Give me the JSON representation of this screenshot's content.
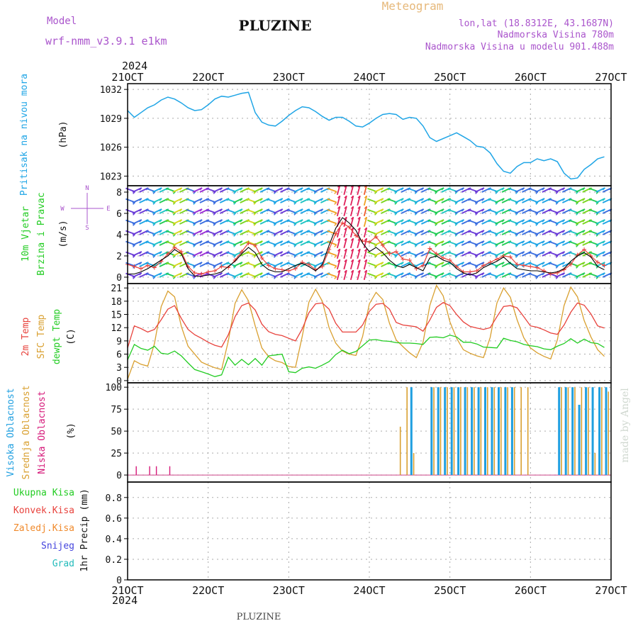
{
  "header": {
    "model_label": "Model",
    "model_name": "wrf-nmm_v3.9.1 e1km",
    "station": "PLUZINE",
    "product": "Meteogram",
    "lonlat": "lon,lat (18.8312E, 43.1687N)",
    "elevation": "Nadmorska Visina 780m",
    "model_elevation": "Nadmorska Visina u modelu 901.488m",
    "year_top": "2024",
    "year_bottom": "2024",
    "footer_station": "PLUZINE",
    "watermark": "made by Angel"
  },
  "colors": {
    "pressure": "#1fa5e6",
    "temp2m": "#e8423c",
    "sfc_temp": "#d9a030",
    "dewpoint": "#22cc22",
    "high_cloud": "#1f9fe0",
    "mid_cloud": "#d9a030",
    "low_cloud": "#d6197a",
    "precip_total": "#22cc22",
    "precip_conv": "#e8423c",
    "precip_frozen": "#f08a2c",
    "snow": "#4444dd",
    "graupel": "#22bbbb",
    "gust": "#e8423c",
    "wind_speed": "#000000",
    "label_purple": "#aa55cc"
  },
  "chart_data": [
    {
      "type": "line",
      "panel": "pressure",
      "ylabel": [
        "Pritisak na nivou mora",
        "(hPa)"
      ],
      "x_ticks": [
        "21OCT",
        "22OCT",
        "23OCT",
        "24OCT",
        "25OCT",
        "26OCT",
        "27OCT"
      ],
      "y_ticks": [
        1023,
        1026,
        1029,
        1032
      ],
      "ylim": [
        1022,
        1032.6
      ],
      "grid": true,
      "series": [
        {
          "values": [
            1029.8,
            1029.1,
            1029.6,
            1030.1,
            1030.4,
            1030.9,
            1031.2,
            1031.0,
            1030.6,
            1030.1,
            1029.8,
            1029.9,
            1030.4,
            1031.0,
            1031.3,
            1031.2,
            1031.4,
            1031.6,
            1031.7,
            1029.6,
            1028.6,
            1028.3,
            1028.2,
            1028.7,
            1029.3,
            1029.8,
            1030.2,
            1030.1,
            1029.7,
            1029.2,
            1028.8,
            1029.1,
            1029.1,
            1028.7,
            1028.2,
            1028.1,
            1028.5,
            1029.0,
            1029.4,
            1029.5,
            1029.4,
            1028.9,
            1029.1,
            1029.0,
            1028.2,
            1027.0,
            1026.6,
            1026.9,
            1027.2,
            1027.5,
            1027.1,
            1026.7,
            1026.1,
            1026.0,
            1025.4,
            1024.3,
            1023.5,
            1023.3,
            1024.0,
            1024.4,
            1024.4,
            1024.8,
            1024.6,
            1024.8,
            1024.5,
            1023.3,
            1022.7,
            1022.8,
            1023.7,
            1024.2,
            1024.8,
            1025.0
          ]
        }
      ]
    },
    {
      "type": "line",
      "panel": "wind",
      "ylabel": [
        "10m Vjetar",
        "Brzina i Pravac",
        "(m/s)"
      ],
      "compass": {
        "n": "N",
        "w": "W",
        "e": "E",
        "s": "S"
      },
      "y_ticks": [
        0,
        2,
        4,
        6,
        8
      ],
      "ylim": [
        -0.6,
        8.6
      ],
      "grid": true,
      "series": [
        {
          "name": "gust",
          "values": [
            1.2,
            1.0,
            0.8,
            1.1,
            0.9,
            1.5,
            2.2,
            2.8,
            2.4,
            1.0,
            0.4,
            0.3,
            0.5,
            0.6,
            1.0,
            0.9,
            1.6,
            2.4,
            3.2,
            3.0,
            1.8,
            1.1,
            0.8,
            0.7,
            0.6,
            0.8,
            1.4,
            1.2,
            0.7,
            1.0,
            2.6,
            4.1,
            5.1,
            4.7,
            3.9,
            3.4,
            3.3,
            3.8,
            3.0,
            2.2,
            2.4,
            1.7,
            1.6,
            0.8,
            1.1,
            2.7,
            2.2,
            1.8,
            1.6,
            1.0,
            0.5,
            0.5,
            0.6,
            1.1,
            1.4,
            1.7,
            2.0,
            1.9,
            1.2,
            1.1,
            1.0,
            0.9,
            0.6,
            0.3,
            0.4,
            0.7,
            1.2,
            2.1,
            2.6,
            2.0,
            1.4,
            1.1
          ]
        },
        {
          "name": "speed",
          "values": [
            0.3,
            0.3,
            0.5,
            0.8,
            1.2,
            1.6,
            2.0,
            2.6,
            2.2,
            0.8,
            0.1,
            0.1,
            0.2,
            0.3,
            0.5,
            1.0,
            1.5,
            2.2,
            2.8,
            2.3,
            1.2,
            0.7,
            0.5,
            0.5,
            0.8,
            1.1,
            1.3,
            1.0,
            0.6,
            1.2,
            3.0,
            4.6,
            5.6,
            5.1,
            4.4,
            3.2,
            2.4,
            2.8,
            2.3,
            1.6,
            1.1,
            0.9,
            1.2,
            0.9,
            0.6,
            1.8,
            2.0,
            1.6,
            1.4,
            0.8,
            0.4,
            0.2,
            0.4,
            0.9,
            1.2,
            1.5,
            1.9,
            1.3,
            0.8,
            0.7,
            0.6,
            0.6,
            0.5,
            0.4,
            0.5,
            0.8,
            1.5,
            2.0,
            2.3,
            1.9,
            1.0,
            0.7
          ]
        }
      ]
    },
    {
      "type": "line",
      "panel": "temperature",
      "ylabel": [
        "2m Temp",
        "SFC Temp",
        "dewpt Temp",
        "(C)"
      ],
      "y_ticks": [
        0,
        3,
        6,
        9,
        12,
        15,
        18,
        21
      ],
      "ylim": [
        -0.5,
        22
      ],
      "grid": true,
      "series": [
        {
          "name": "2m Temp",
          "values": [
            7.4,
            12.4,
            11.8,
            11.0,
            11.6,
            13.8,
            16.2,
            17.0,
            14.1,
            11.6,
            10.4,
            9.6,
            8.7,
            8.0,
            7.6,
            10.4,
            14.5,
            17.0,
            17.6,
            16.0,
            12.8,
            11.1,
            10.5,
            10.2,
            9.6,
            9.0,
            11.7,
            15.4,
            17.4,
            17.6,
            16.2,
            13.0,
            11.0,
            11.0,
            11.0,
            12.6,
            15.7,
            17.3,
            17.5,
            16.2,
            13.2,
            12.6,
            12.4,
            12.2,
            11.2,
            13.7,
            16.6,
            17.7,
            17.0,
            15.0,
            13.3,
            12.3,
            11.9,
            11.6,
            12.0,
            14.5,
            16.8,
            17.0,
            16.5,
            14.5,
            12.4,
            12.1,
            11.5,
            10.8,
            10.5,
            12.6,
            15.5,
            17.6,
            17.1,
            15.1,
            12.4,
            11.9
          ]
        },
        {
          "name": "SFC Temp",
          "values": [
            0.3,
            4.5,
            3.7,
            3.3,
            8.4,
            16.8,
            20.3,
            19.0,
            12.3,
            7.8,
            6.0,
            4.2,
            3.5,
            2.9,
            2.5,
            9.0,
            17.5,
            20.6,
            18.1,
            12.4,
            7.4,
            5.4,
            4.5,
            4.1,
            3.2,
            3.0,
            10.0,
            17.8,
            20.7,
            18.0,
            12.0,
            8.5,
            6.7,
            6.0,
            5.7,
            10.0,
            17.4,
            20.0,
            18.4,
            13.0,
            9.2,
            7.7,
            6.3,
            5.2,
            8.7,
            17.0,
            21.6,
            19.2,
            13.3,
            9.6,
            7.0,
            6.2,
            5.6,
            5.2,
            9.8,
            17.6,
            21.0,
            18.9,
            13.8,
            9.7,
            7.4,
            6.3,
            5.5,
            4.9,
            9.2,
            17.0,
            21.2,
            19.0,
            13.6,
            9.9,
            7.0,
            5.5
          ]
        },
        {
          "name": "dewpt Temp",
          "values": [
            4.7,
            8.2,
            7.3,
            6.9,
            7.8,
            6.2,
            6.0,
            6.7,
            5.6,
            4.0,
            2.5,
            2.0,
            1.5,
            0.9,
            1.3,
            5.3,
            3.5,
            4.8,
            3.6,
            5.0,
            3.5,
            5.6,
            5.8,
            6.0,
            2.0,
            1.8,
            2.8,
            3.1,
            2.8,
            3.5,
            4.3,
            5.9,
            6.9,
            6.1,
            6.6,
            7.9,
            9.2,
            9.3,
            9.0,
            8.9,
            8.6,
            8.5,
            8.5,
            8.4,
            8.2,
            9.8,
            9.9,
            9.7,
            10.3,
            9.9,
            8.7,
            8.7,
            8.3,
            7.6,
            7.5,
            7.4,
            9.6,
            9.1,
            8.8,
            8.2,
            7.9,
            7.7,
            7.2,
            7.0,
            7.8,
            8.4,
            9.5,
            8.5,
            9.4,
            8.6,
            8.4,
            7.5
          ]
        }
      ]
    },
    {
      "type": "bar",
      "panel": "clouds",
      "ylabel": [
        "Visoka Oblacnost",
        "Srednja Oblacnost",
        "Niska Oblacnost",
        "(%)"
      ],
      "y_ticks": [
        0,
        25,
        50,
        75,
        100
      ],
      "ylim": [
        -8,
        105
      ],
      "grid": true,
      "series": [
        {
          "name": "Niska Oblacnost",
          "values": [
            0,
            10,
            0,
            10,
            10,
            0,
            10,
            0,
            0,
            0,
            0,
            0,
            0,
            0,
            0,
            0,
            0,
            0,
            0,
            0,
            0,
            0,
            0,
            0,
            0,
            0,
            0,
            0,
            0,
            0,
            0,
            0,
            0,
            0,
            0,
            0,
            0,
            0,
            0,
            0,
            0,
            0,
            0,
            0,
            0,
            0,
            0,
            0,
            0,
            0,
            0,
            0,
            0,
            0,
            0,
            0,
            0,
            0,
            0,
            0,
            0,
            0,
            0,
            0,
            0,
            0,
            0,
            0,
            0,
            0,
            0,
            0
          ]
        },
        {
          "name": "Srednja Oblacnost",
          "values": [
            0,
            0,
            0,
            0,
            0,
            0,
            0,
            0,
            0,
            0,
            0,
            0,
            0,
            0,
            0,
            0,
            0,
            0,
            0,
            0,
            0,
            0,
            0,
            0,
            0,
            0,
            0,
            0,
            0,
            0,
            0,
            0,
            0,
            0,
            0,
            0,
            0,
            0,
            0,
            0,
            55,
            100,
            25,
            0,
            0,
            100,
            100,
            100,
            100,
            100,
            100,
            100,
            100,
            100,
            100,
            100,
            100,
            100,
            100,
            100,
            0,
            0,
            0,
            0,
            100,
            100,
            100,
            100,
            100,
            25,
            100,
            95
          ]
        },
        {
          "name": "Visoka Oblacnost",
          "values": [
            0,
            0,
            0,
            0,
            0,
            0,
            0,
            0,
            0,
            0,
            0,
            0,
            0,
            0,
            0,
            0,
            0,
            0,
            0,
            0,
            0,
            0,
            0,
            0,
            0,
            0,
            0,
            0,
            0,
            0,
            0,
            0,
            0,
            0,
            0,
            0,
            0,
            0,
            0,
            0,
            0,
            0,
            100,
            0,
            0,
            100,
            100,
            100,
            100,
            100,
            100,
            100,
            100,
            100,
            100,
            100,
            100,
            100,
            0,
            0,
            0,
            0,
            0,
            0,
            100,
            100,
            100,
            80,
            100,
            100,
            100,
            100
          ]
        }
      ]
    },
    {
      "type": "bar",
      "panel": "precipitation",
      "legend": [
        "Ukupna Kisa",
        "Konvek.Kisa",
        "Zaledj.Kisa",
        "Snijeg",
        "Grad"
      ],
      "ylabel": [
        "1hr Precip (mm)"
      ],
      "y_ticks": [
        0,
        0.2,
        0.4,
        0.6,
        0.8
      ],
      "ylim": [
        0,
        0.95
      ],
      "grid": true,
      "x_ticks": [
        "21OCT",
        "22OCT",
        "23OCT",
        "24OCT",
        "25OCT",
        "26OCT",
        "27OCT"
      ],
      "series": [
        {
          "name": "Ukupna Kisa",
          "values": [
            0,
            0,
            0,
            0,
            0,
            0,
            0,
            0,
            0,
            0,
            0,
            0,
            0,
            0,
            0,
            0,
            0,
            0,
            0,
            0,
            0,
            0,
            0,
            0,
            0,
            0,
            0,
            0,
            0,
            0,
            0,
            0,
            0,
            0,
            0,
            0,
            0,
            0,
            0,
            0,
            0,
            0,
            0,
            0,
            0,
            0,
            0,
            0,
            0,
            0,
            0,
            0,
            0,
            0,
            0,
            0,
            0,
            0,
            0,
            0,
            0,
            0,
            0,
            0,
            0,
            0,
            0,
            0,
            0,
            0,
            0,
            0
          ]
        }
      ]
    }
  ]
}
